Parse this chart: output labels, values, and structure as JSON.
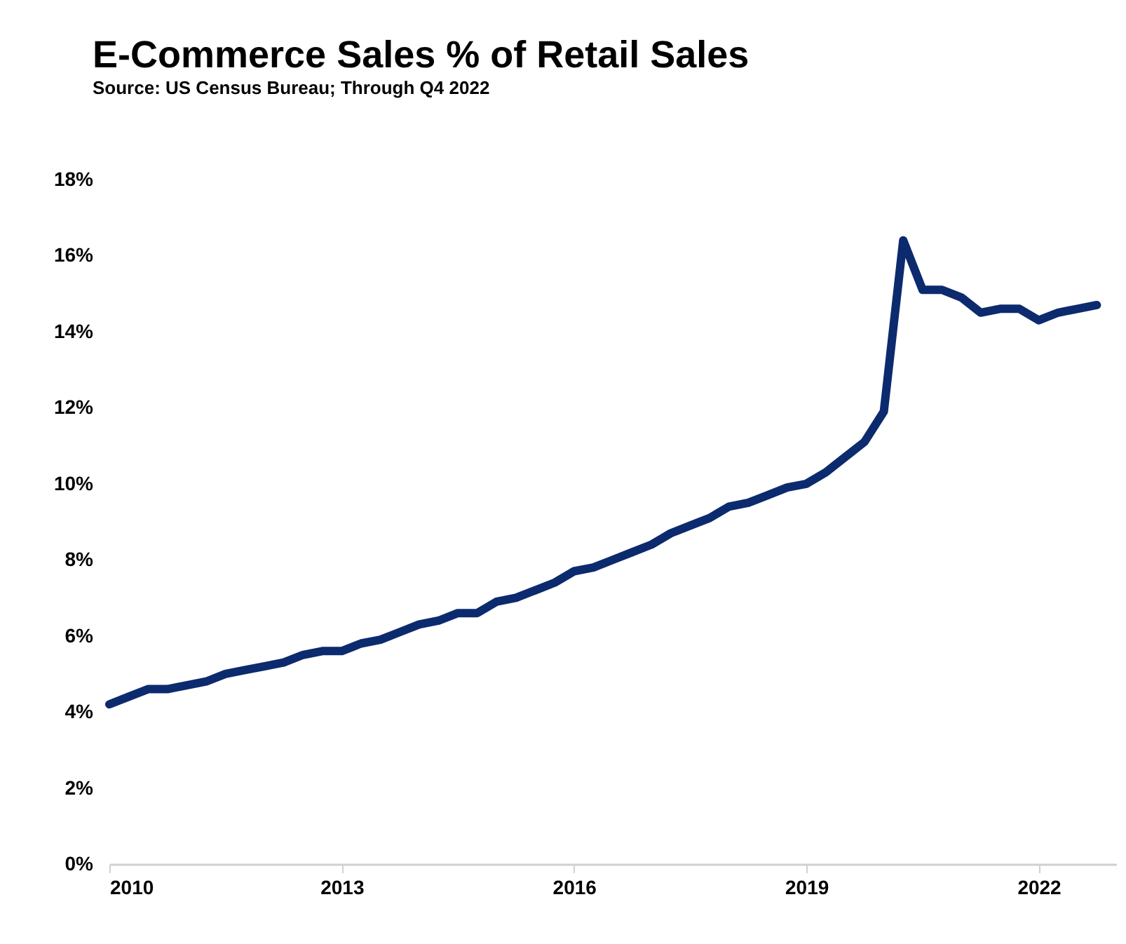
{
  "chart_data": {
    "type": "line",
    "title": "E-Commerce Sales % of Retail Sales",
    "subtitle": "Source: US Census Bureau; Through Q4 2022",
    "x": [
      2010,
      2010.25,
      2010.5,
      2010.75,
      2011,
      2011.25,
      2011.5,
      2011.75,
      2012,
      2012.25,
      2012.5,
      2012.75,
      2013,
      2013.25,
      2013.5,
      2013.75,
      2014,
      2014.25,
      2014.5,
      2014.75,
      2015,
      2015.25,
      2015.5,
      2015.75,
      2016,
      2016.25,
      2016.5,
      2016.75,
      2017,
      2017.25,
      2017.5,
      2017.75,
      2018,
      2018.25,
      2018.5,
      2018.75,
      2019,
      2019.25,
      2019.5,
      2019.75,
      2020,
      2020.25,
      2020.5,
      2020.75,
      2021,
      2021.25,
      2021.5,
      2021.75,
      2022,
      2022.25,
      2022.5,
      2022.75
    ],
    "series": [
      {
        "color": "#0c2a6e",
        "values": [
          4.2,
          4.4,
          4.6,
          4.6,
          4.7,
          4.8,
          5.0,
          5.1,
          5.2,
          5.3,
          5.5,
          5.6,
          5.6,
          5.8,
          5.9,
          6.1,
          6.3,
          6.4,
          6.6,
          6.6,
          6.9,
          7.0,
          7.2,
          7.4,
          7.7,
          7.8,
          8.0,
          8.2,
          8.4,
          8.7,
          8.9,
          9.1,
          9.4,
          9.5,
          9.7,
          9.9,
          10.0,
          10.3,
          10.7,
          11.1,
          11.9,
          16.4,
          15.1,
          15.1,
          14.9,
          14.5,
          14.6,
          14.6,
          14.3,
          14.5,
          14.6,
          14.7
        ]
      }
    ],
    "xlim": [
      2010,
      2023
    ],
    "xticks": [
      2010,
      2013,
      2016,
      2019,
      2022
    ],
    "ylim": [
      0,
      18
    ],
    "yticks": [
      {
        "value": 0,
        "label": "0%"
      },
      {
        "value": 2,
        "label": "2%"
      },
      {
        "value": 4,
        "label": "4%"
      },
      {
        "value": 6,
        "label": "6%"
      },
      {
        "value": 8,
        "label": "8%"
      },
      {
        "value": 10,
        "label": "10%"
      },
      {
        "value": 12,
        "label": "12%"
      },
      {
        "value": 14,
        "label": "14%"
      },
      {
        "value": 16,
        "label": "16%"
      },
      {
        "value": 18,
        "label": "18%"
      }
    ],
    "grid": false,
    "marker": "none",
    "line_style": "solid"
  }
}
